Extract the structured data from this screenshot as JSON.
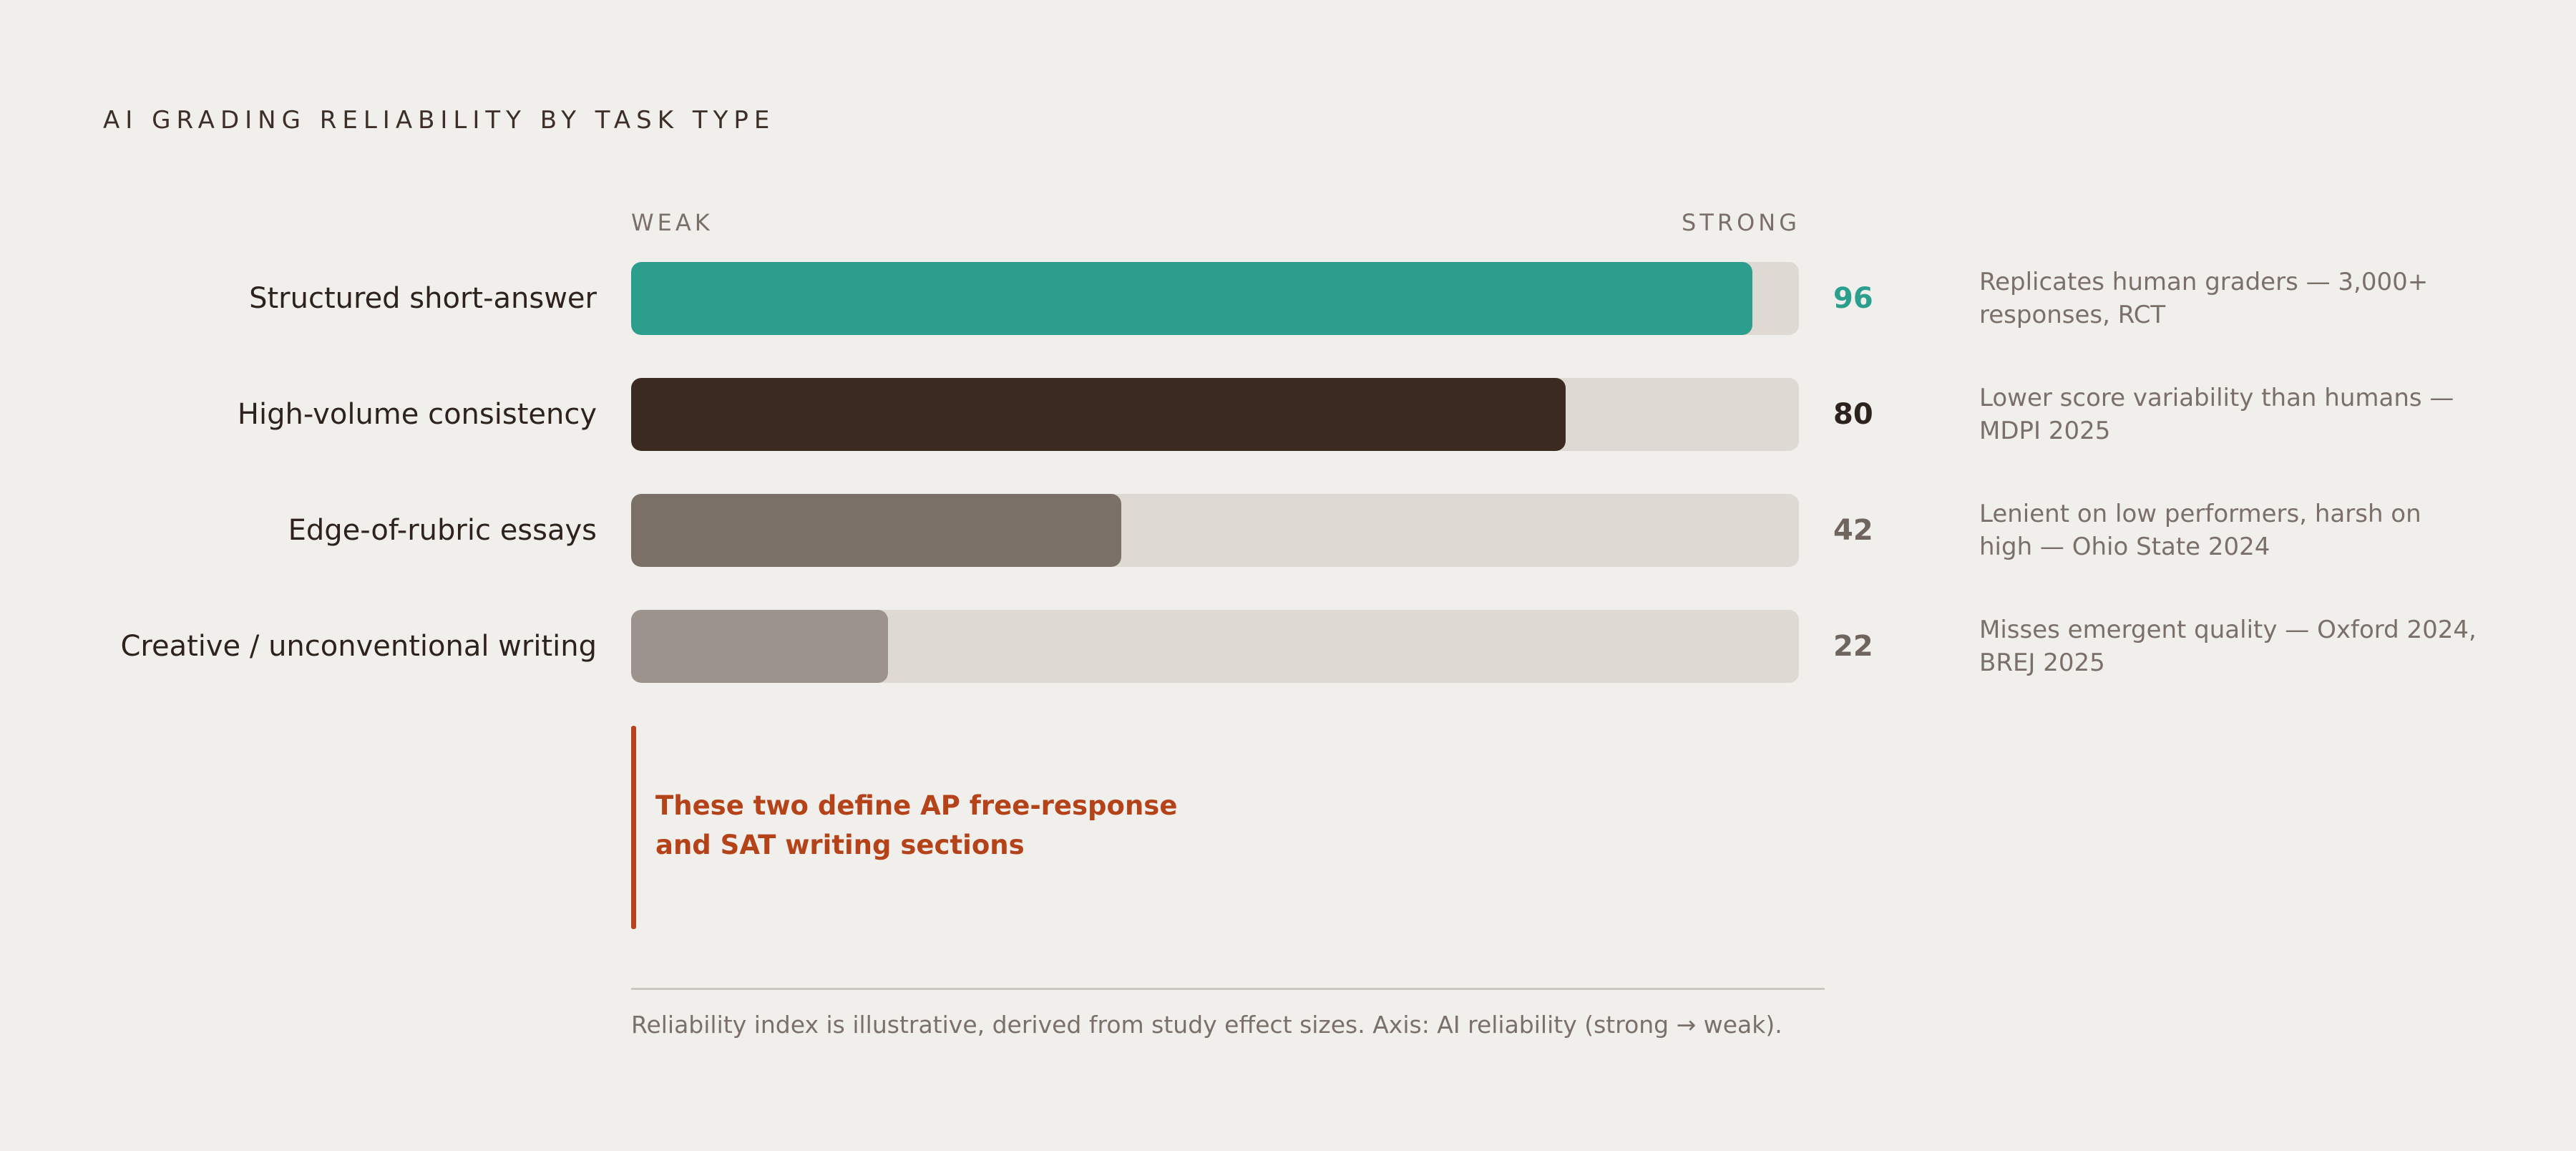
{
  "title": "AI GRADING RELIABILITY BY TASK TYPE",
  "axis": {
    "weak_label": "WEAK",
    "strong_label": "STRONG"
  },
  "chart_data": {
    "type": "bar",
    "orientation": "horizontal",
    "title": "AI GRADING RELIABILITY BY TASK TYPE",
    "xlim": [
      0,
      100
    ],
    "categories": [
      "Structured short-answer",
      "High-volume consistency",
      "Edge-of-rubric essays",
      "Creative / unconventional writing"
    ],
    "values": [
      96,
      80,
      42,
      22
    ],
    "colors": [
      "#2b9e8e",
      "#3b2a21",
      "#7b7068",
      "#9d938d"
    ],
    "value_colors": [
      "#2b9e8e",
      "#2e231c",
      "#6f655e",
      "#6f655e"
    ],
    "annotations": [
      "Replicates human graders — 3,000+ responses, RCT",
      "Lower score variability than humans — MDPI 2025",
      "Lenient on low performers, harsh on high — Ohio State 2024",
      "Misses emergent quality — Oxford 2024, BREJ 2025"
    ]
  },
  "callout": {
    "text": "These two define AP free-response and SAT writing sections",
    "color": "#b5431a"
  },
  "footnote": "Reliability index is illustrative, derived from study effect sizes. Axis: AI reliability (strong → weak)."
}
